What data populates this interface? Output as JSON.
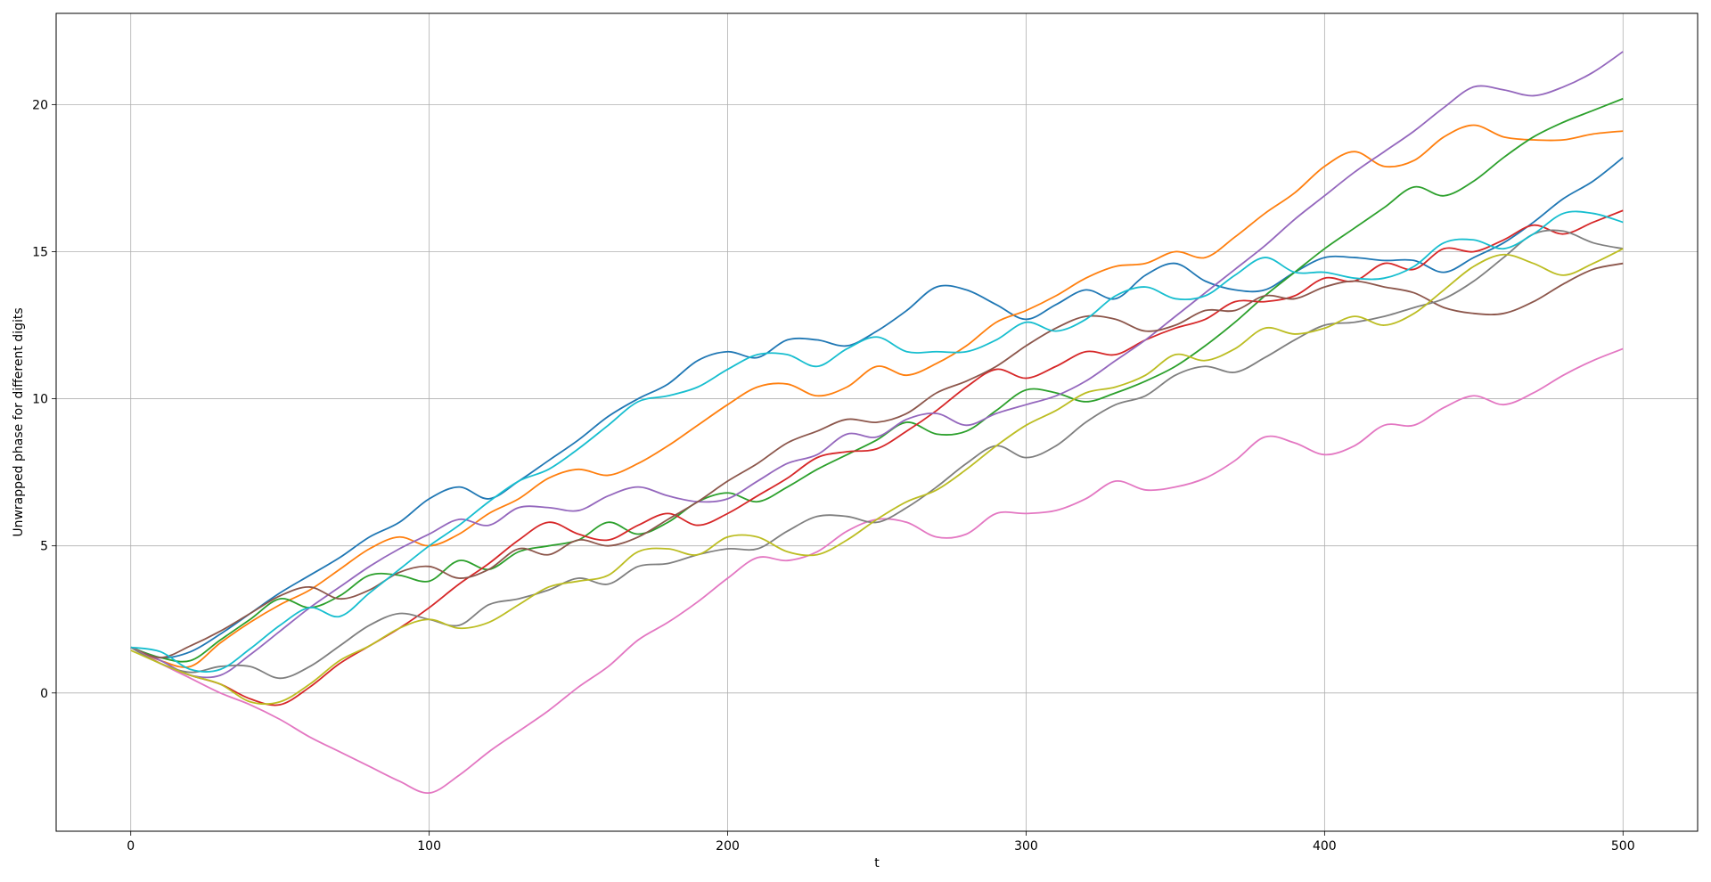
{
  "chart_data": {
    "type": "line",
    "title": "",
    "xlabel": "t",
    "ylabel": "Unwrapped phase for different digits",
    "xlim": [
      -25,
      525
    ],
    "ylim": [
      -4.7,
      23.1
    ],
    "xticks": [
      0,
      100,
      200,
      300,
      400,
      500
    ],
    "yticks": [
      0,
      5,
      10,
      15,
      20
    ],
    "grid": true,
    "legend": "none",
    "x": [
      0,
      10,
      20,
      30,
      40,
      50,
      60,
      70,
      80,
      90,
      100,
      110,
      120,
      130,
      140,
      150,
      160,
      170,
      180,
      190,
      200,
      210,
      220,
      230,
      240,
      250,
      260,
      270,
      280,
      290,
      300,
      310,
      320,
      330,
      340,
      350,
      360,
      370,
      380,
      390,
      400,
      410,
      420,
      430,
      440,
      450,
      460,
      470,
      480,
      490,
      500
    ],
    "series": [
      {
        "color": "#1f77b4",
        "values": [
          1.55,
          1.2,
          1.4,
          2.0,
          2.7,
          3.4,
          4.0,
          4.6,
          5.3,
          5.8,
          6.6,
          7.0,
          6.6,
          7.2,
          7.9,
          8.6,
          9.4,
          10.0,
          10.5,
          11.3,
          11.6,
          11.4,
          12.0,
          12.0,
          11.8,
          12.3,
          13.0,
          13.8,
          13.7,
          13.2,
          12.7,
          13.2,
          13.7,
          13.4,
          14.2,
          14.6,
          14.0,
          13.7,
          13.7,
          14.3,
          14.8,
          14.8,
          14.7,
          14.7,
          14.3,
          14.8,
          15.3,
          16.0,
          16.8,
          17.4,
          18.2
        ]
      },
      {
        "color": "#ff7f0e",
        "values": [
          1.55,
          1.1,
          0.9,
          1.7,
          2.4,
          3.0,
          3.5,
          4.2,
          4.9,
          5.3,
          5.0,
          5.4,
          6.1,
          6.6,
          7.3,
          7.6,
          7.4,
          7.8,
          8.4,
          9.1,
          9.8,
          10.4,
          10.5,
          10.1,
          10.4,
          11.1,
          10.8,
          11.2,
          11.8,
          12.6,
          13.0,
          13.5,
          14.1,
          14.5,
          14.6,
          15.0,
          14.8,
          15.5,
          16.3,
          17.0,
          17.9,
          18.4,
          17.9,
          18.1,
          18.9,
          19.3,
          18.9,
          18.8,
          18.8,
          19.0,
          19.1
        ]
      },
      {
        "color": "#2ca02c",
        "values": [
          1.55,
          1.2,
          1.1,
          1.8,
          2.5,
          3.2,
          2.9,
          3.3,
          4.0,
          4.0,
          3.8,
          4.5,
          4.2,
          4.8,
          5.0,
          5.2,
          5.8,
          5.4,
          5.8,
          6.5,
          6.8,
          6.5,
          7.0,
          7.6,
          8.1,
          8.6,
          9.2,
          8.8,
          8.9,
          9.6,
          10.3,
          10.2,
          9.9,
          10.2,
          10.6,
          11.1,
          11.8,
          12.6,
          13.5,
          14.3,
          15.1,
          15.8,
          16.5,
          17.2,
          16.9,
          17.4,
          18.2,
          18.9,
          19.4,
          19.8,
          20.2
        ]
      },
      {
        "color": "#d62728",
        "values": [
          1.55,
          1.0,
          0.6,
          0.3,
          -0.2,
          -0.4,
          0.2,
          1.0,
          1.6,
          2.2,
          2.9,
          3.7,
          4.4,
          5.2,
          5.8,
          5.4,
          5.2,
          5.7,
          6.1,
          5.7,
          6.1,
          6.7,
          7.3,
          8.0,
          8.2,
          8.3,
          8.9,
          9.6,
          10.4,
          11.0,
          10.7,
          11.1,
          11.6,
          11.5,
          12.0,
          12.4,
          12.7,
          13.3,
          13.3,
          13.5,
          14.1,
          14.0,
          14.6,
          14.4,
          15.1,
          15.0,
          15.4,
          15.9,
          15.6,
          16.0,
          16.4
        ]
      },
      {
        "color": "#9467bd",
        "values": [
          1.55,
          1.1,
          0.6,
          0.6,
          1.3,
          2.1,
          2.9,
          3.6,
          4.3,
          4.9,
          5.4,
          5.9,
          5.7,
          6.3,
          6.3,
          6.2,
          6.7,
          7.0,
          6.7,
          6.5,
          6.6,
          7.2,
          7.8,
          8.1,
          8.8,
          8.7,
          9.3,
          9.5,
          9.1,
          9.5,
          9.8,
          10.1,
          10.6,
          11.3,
          12.0,
          12.8,
          13.6,
          14.4,
          15.2,
          16.1,
          16.9,
          17.7,
          18.4,
          19.1,
          19.9,
          20.6,
          20.5,
          20.3,
          20.6,
          21.1,
          21.8
        ]
      },
      {
        "color": "#8c564b",
        "values": [
          1.55,
          1.2,
          1.6,
          2.1,
          2.7,
          3.3,
          3.6,
          3.2,
          3.5,
          4.1,
          4.3,
          3.9,
          4.2,
          4.9,
          4.7,
          5.2,
          5.0,
          5.3,
          5.9,
          6.5,
          7.2,
          7.8,
          8.5,
          8.9,
          9.3,
          9.2,
          9.5,
          10.2,
          10.6,
          11.1,
          11.8,
          12.4,
          12.8,
          12.7,
          12.3,
          12.5,
          13.0,
          13.0,
          13.5,
          13.4,
          13.8,
          14.0,
          13.8,
          13.6,
          13.1,
          12.9,
          12.9,
          13.3,
          13.9,
          14.4,
          14.6
        ]
      },
      {
        "color": "#e377c2",
        "values": [
          1.55,
          1.0,
          0.5,
          0.0,
          -0.4,
          -0.9,
          -1.5,
          -2.0,
          -2.5,
          -3.0,
          -3.4,
          -2.8,
          -2.0,
          -1.3,
          -0.6,
          0.2,
          0.9,
          1.8,
          2.4,
          3.1,
          3.9,
          4.6,
          4.5,
          4.8,
          5.5,
          5.9,
          5.8,
          5.3,
          5.4,
          6.1,
          6.1,
          6.2,
          6.6,
          7.2,
          6.9,
          7.0,
          7.3,
          7.9,
          8.7,
          8.5,
          8.1,
          8.4,
          9.1,
          9.1,
          9.7,
          10.1,
          9.8,
          10.2,
          10.8,
          11.3,
          11.7
        ]
      },
      {
        "color": "#7f7f7f",
        "values": [
          1.55,
          1.0,
          0.7,
          0.9,
          0.9,
          0.5,
          0.9,
          1.6,
          2.3,
          2.7,
          2.5,
          2.3,
          3.0,
          3.2,
          3.5,
          3.9,
          3.7,
          4.3,
          4.4,
          4.7,
          4.9,
          4.9,
          5.5,
          6.0,
          6.0,
          5.8,
          6.3,
          7.0,
          7.8,
          8.4,
          8.0,
          8.4,
          9.2,
          9.8,
          10.1,
          10.8,
          11.1,
          10.9,
          11.4,
          12.0,
          12.5,
          12.6,
          12.8,
          13.1,
          13.4,
          14.0,
          14.8,
          15.6,
          15.7,
          15.3,
          15.1
        ]
      },
      {
        "color": "#bcbd22",
        "values": [
          1.45,
          1.0,
          0.6,
          0.3,
          -0.3,
          -0.3,
          0.3,
          1.1,
          1.6,
          2.2,
          2.5,
          2.2,
          2.4,
          3.0,
          3.6,
          3.8,
          4.0,
          4.8,
          4.9,
          4.7,
          5.3,
          5.3,
          4.8,
          4.7,
          5.2,
          5.9,
          6.5,
          6.9,
          7.6,
          8.4,
          9.1,
          9.6,
          10.2,
          10.4,
          10.8,
          11.5,
          11.3,
          11.7,
          12.4,
          12.2,
          12.4,
          12.8,
          12.5,
          12.9,
          13.7,
          14.5,
          14.9,
          14.6,
          14.2,
          14.6,
          15.1
        ]
      },
      {
        "color": "#17becf",
        "values": [
          1.55,
          1.4,
          0.8,
          0.8,
          1.5,
          2.3,
          2.9,
          2.6,
          3.4,
          4.2,
          5.0,
          5.7,
          6.5,
          7.2,
          7.6,
          8.3,
          9.1,
          9.9,
          10.1,
          10.4,
          11.0,
          11.5,
          11.5,
          11.1,
          11.7,
          12.1,
          11.6,
          11.6,
          11.6,
          12.0,
          12.6,
          12.3,
          12.7,
          13.5,
          13.8,
          13.4,
          13.5,
          14.2,
          14.8,
          14.3,
          14.3,
          14.1,
          14.1,
          14.5,
          15.3,
          15.4,
          15.1,
          15.6,
          16.3,
          16.3,
          16.0
        ]
      }
    ]
  }
}
